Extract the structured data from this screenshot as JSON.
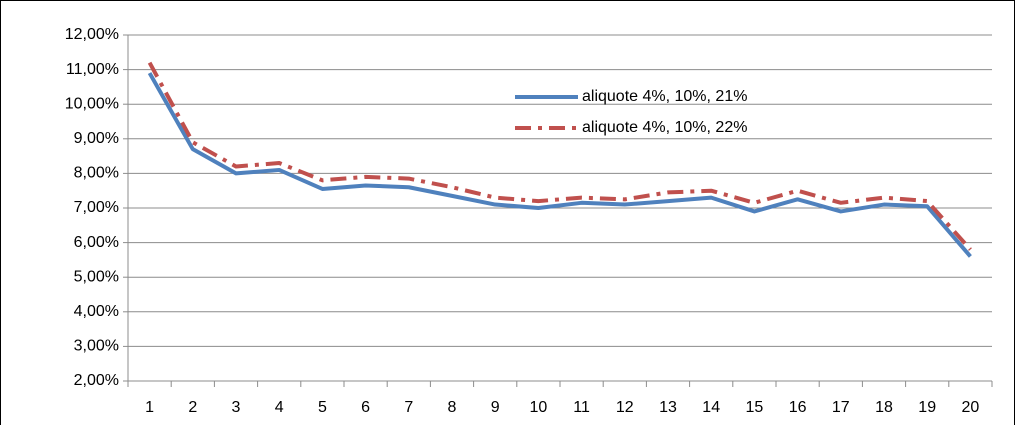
{
  "chart_data": {
    "type": "line",
    "categories": [
      "1",
      "2",
      "3",
      "4",
      "5",
      "6",
      "7",
      "8",
      "9",
      "10",
      "11",
      "12",
      "13",
      "14",
      "15",
      "16",
      "17",
      "18",
      "19",
      "20"
    ],
    "series": [
      {
        "name": "aliquote 4%, 10%, 21%",
        "color": "#4f81bd",
        "style": "solid",
        "values": [
          10.9,
          8.7,
          8.0,
          8.1,
          7.55,
          7.65,
          7.6,
          7.35,
          7.1,
          7.0,
          7.15,
          7.1,
          7.2,
          7.3,
          6.9,
          7.25,
          6.9,
          7.1,
          7.05,
          5.6
        ]
      },
      {
        "name": "aliquote 4%, 10%, 22%",
        "color": "#c0504d",
        "style": "dash-dot",
        "values": [
          11.2,
          8.9,
          8.2,
          8.3,
          7.8,
          7.9,
          7.85,
          7.6,
          7.3,
          7.2,
          7.3,
          7.25,
          7.45,
          7.5,
          7.15,
          7.5,
          7.15,
          7.3,
          7.2,
          5.8
        ]
      }
    ],
    "ylim": [
      2,
      12
    ],
    "yticks": [
      {
        "value": 2,
        "label": "2,00%"
      },
      {
        "value": 3,
        "label": "3,00%"
      },
      {
        "value": 4,
        "label": "4,00%"
      },
      {
        "value": 5,
        "label": "5,00%"
      },
      {
        "value": 6,
        "label": "6,00%"
      },
      {
        "value": 7,
        "label": "7,00%"
      },
      {
        "value": 8,
        "label": "8,00%"
      },
      {
        "value": 9,
        "label": "9,00%"
      },
      {
        "value": 10,
        "label": "10,00%"
      },
      {
        "value": 11,
        "label": "11,00%"
      },
      {
        "value": 12,
        "label": "12,00%"
      }
    ],
    "grid": true
  }
}
